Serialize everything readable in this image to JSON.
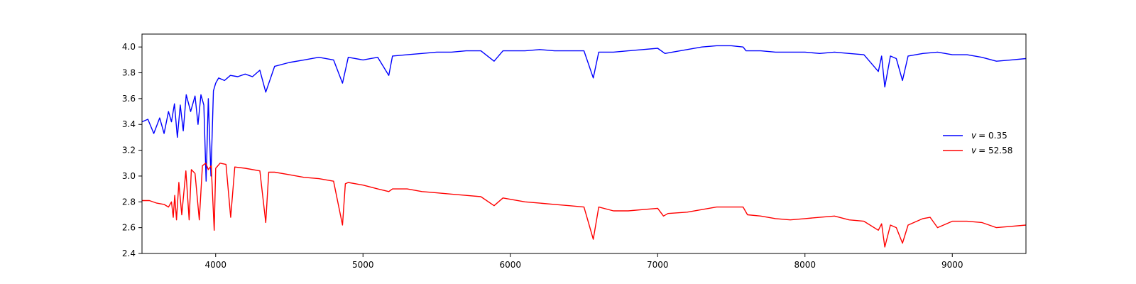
{
  "chart_data": {
    "type": "line",
    "title": "",
    "xlabel": "",
    "ylabel": "",
    "xlim": [
      3500,
      9500
    ],
    "ylim": [
      2.4,
      4.1
    ],
    "grid": false,
    "legend_position": "center-right",
    "xticks": [
      {
        "value": 4000,
        "label": "4000"
      },
      {
        "value": 5000,
        "label": "5000"
      },
      {
        "value": 6000,
        "label": "6000"
      },
      {
        "value": 7000,
        "label": "7000"
      },
      {
        "value": 8000,
        "label": "8000"
      },
      {
        "value": 9000,
        "label": "9000"
      }
    ],
    "yticks": [
      {
        "value": 2.4,
        "label": "2.4"
      },
      {
        "value": 2.6,
        "label": "2.6"
      },
      {
        "value": 2.8,
        "label": "2.8"
      },
      {
        "value": 3.0,
        "label": "3.0"
      },
      {
        "value": 3.2,
        "label": "3.2"
      },
      {
        "value": 3.4,
        "label": "3.4"
      },
      {
        "value": 3.6,
        "label": "3.6"
      },
      {
        "value": 3.8,
        "label": "3.8"
      },
      {
        "value": 4.0,
        "label": "4.0"
      }
    ],
    "series": [
      {
        "name": "v = 0.35",
        "legend_prefix": "v",
        "legend_value": "= 0.35",
        "color": "#0000ff",
        "x": [
          3500,
          3540,
          3580,
          3620,
          3650,
          3680,
          3700,
          3720,
          3740,
          3760,
          3780,
          3800,
          3830,
          3860,
          3880,
          3900,
          3920,
          3935,
          3950,
          3968,
          3985,
          4000,
          4020,
          4060,
          4100,
          4150,
          4200,
          4250,
          4300,
          4340,
          4400,
          4500,
          4600,
          4700,
          4800,
          4861,
          4900,
          5000,
          5100,
          5175,
          5200,
          5300,
          5400,
          5500,
          5600,
          5700,
          5800,
          5890,
          5950,
          6000,
          6100,
          6200,
          6300,
          6400,
          6500,
          6563,
          6600,
          6700,
          6800,
          6900,
          7000,
          7050,
          7100,
          7200,
          7300,
          7400,
          7500,
          7580,
          7600,
          7700,
          7800,
          7900,
          8000,
          8100,
          8200,
          8300,
          8400,
          8498,
          8520,
          8542,
          8580,
          8620,
          8662,
          8700,
          8800,
          8900,
          9000,
          9100,
          9200,
          9300,
          9400,
          9500
        ],
        "y": [
          3.42,
          3.44,
          3.33,
          3.45,
          3.33,
          3.5,
          3.42,
          3.56,
          3.3,
          3.55,
          3.35,
          3.63,
          3.5,
          3.62,
          3.4,
          3.63,
          3.55,
          2.96,
          3.6,
          3.0,
          3.66,
          3.72,
          3.76,
          3.74,
          3.78,
          3.77,
          3.79,
          3.77,
          3.82,
          3.65,
          3.85,
          3.88,
          3.9,
          3.92,
          3.9,
          3.72,
          3.92,
          3.9,
          3.92,
          3.78,
          3.93,
          3.94,
          3.95,
          3.96,
          3.96,
          3.97,
          3.97,
          3.89,
          3.97,
          3.97,
          3.97,
          3.98,
          3.97,
          3.97,
          3.97,
          3.76,
          3.96,
          3.96,
          3.97,
          3.98,
          3.99,
          3.95,
          3.96,
          3.98,
          4.0,
          4.01,
          4.01,
          4.0,
          3.97,
          3.97,
          3.96,
          3.96,
          3.96,
          3.95,
          3.96,
          3.95,
          3.94,
          3.81,
          3.93,
          3.69,
          3.93,
          3.91,
          3.74,
          3.93,
          3.95,
          3.96,
          3.94,
          3.94,
          3.92,
          3.89,
          3.9,
          3.91
        ]
      },
      {
        "name": "v = 52.58",
        "legend_prefix": "v",
        "legend_value": "= 52.58",
        "color": "#ff0000",
        "x": [
          3500,
          3550,
          3600,
          3650,
          3680,
          3700,
          3712,
          3722,
          3734,
          3750,
          3770,
          3798,
          3820,
          3835,
          3860,
          3889,
          3910,
          3933,
          3950,
          3970,
          3990,
          4000,
          4030,
          4070,
          4102,
          4130,
          4200,
          4300,
          4340,
          4360,
          4400,
          4500,
          4600,
          4700,
          4800,
          4861,
          4880,
          4900,
          5000,
          5100,
          5175,
          5200,
          5300,
          5400,
          5500,
          5600,
          5700,
          5800,
          5890,
          5950,
          6000,
          6100,
          6200,
          6300,
          6400,
          6500,
          6563,
          6600,
          6700,
          6800,
          6900,
          7000,
          7040,
          7070,
          7200,
          7300,
          7400,
          7500,
          7580,
          7610,
          7700,
          7800,
          7900,
          8000,
          8100,
          8200,
          8300,
          8400,
          8498,
          8520,
          8542,
          8580,
          8620,
          8662,
          8700,
          8800,
          8850,
          8900,
          9000,
          9100,
          9200,
          9300,
          9400,
          9500
        ],
        "y": [
          2.81,
          2.81,
          2.79,
          2.78,
          2.76,
          2.8,
          2.68,
          2.85,
          2.66,
          2.95,
          2.7,
          3.04,
          2.66,
          3.05,
          3.02,
          2.66,
          3.08,
          3.1,
          3.05,
          3.08,
          2.58,
          3.06,
          3.1,
          3.09,
          2.68,
          3.07,
          3.06,
          3.04,
          2.64,
          3.03,
          3.03,
          3.01,
          2.99,
          2.98,
          2.96,
          2.62,
          2.94,
          2.95,
          2.93,
          2.9,
          2.88,
          2.9,
          2.9,
          2.88,
          2.87,
          2.86,
          2.85,
          2.84,
          2.77,
          2.83,
          2.82,
          2.8,
          2.79,
          2.78,
          2.77,
          2.76,
          2.51,
          2.76,
          2.73,
          2.73,
          2.74,
          2.75,
          2.69,
          2.71,
          2.72,
          2.74,
          2.76,
          2.76,
          2.76,
          2.7,
          2.69,
          2.67,
          2.66,
          2.67,
          2.68,
          2.69,
          2.66,
          2.65,
          2.58,
          2.63,
          2.45,
          2.62,
          2.6,
          2.48,
          2.62,
          2.67,
          2.68,
          2.6,
          2.65,
          2.65,
          2.64,
          2.6,
          2.61,
          2.62
        ]
      }
    ]
  }
}
